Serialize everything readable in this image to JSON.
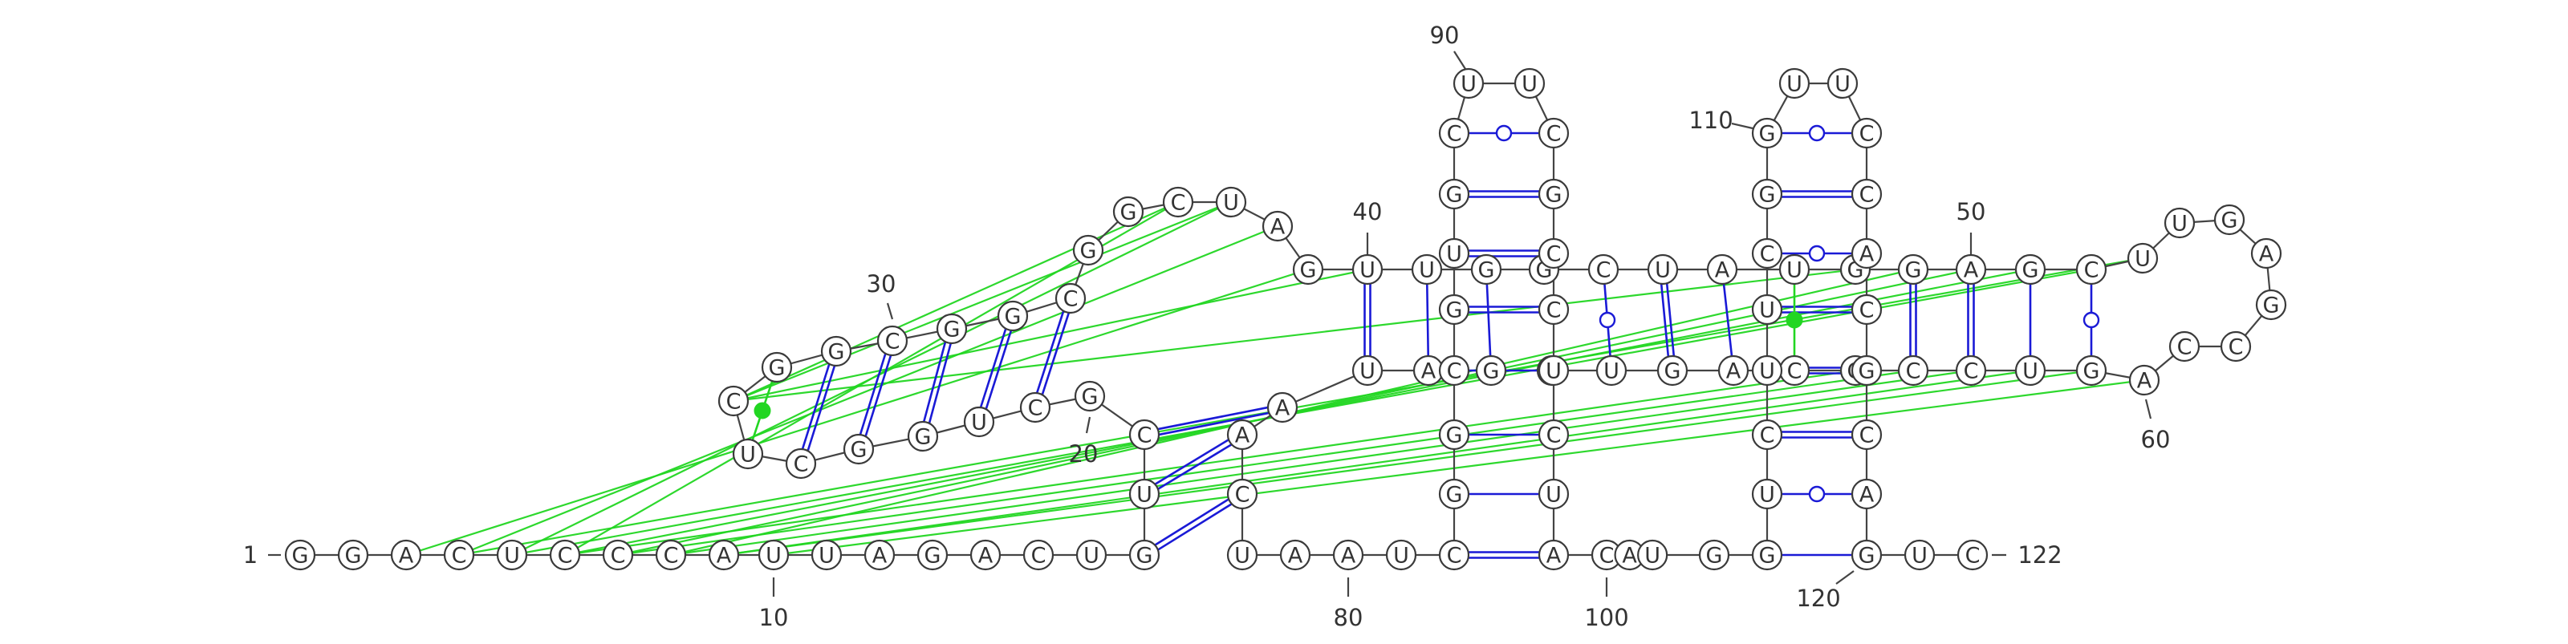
{
  "diagram": {
    "colors": {
      "canonical_pair": "#1a1ad6",
      "pseudoknot": "#22d622",
      "backbone": "#444444",
      "circle_stroke": "#3a3a3a"
    },
    "sequence": [
      "G",
      "G",
      "A",
      "C",
      "U",
      "C",
      "C",
      "C",
      "A",
      "U",
      "U",
      "A",
      "G",
      "A",
      "C",
      "U",
      "G",
      "U",
      "C",
      "G",
      "C",
      "U",
      "G",
      "G",
      "C",
      "U",
      "C",
      "G",
      "G",
      "C",
      "G",
      "G",
      "C",
      "G",
      "G",
      "C",
      "U",
      "A",
      "G",
      "U",
      "U",
      "G",
      "G",
      "C",
      "U",
      "A",
      "U",
      "G",
      "G",
      "A",
      "G",
      "C",
      "U",
      "U",
      "G",
      "A",
      "G",
      "C",
      "C",
      "A",
      "G",
      "U",
      "C",
      "C",
      "G",
      "C",
      "A",
      "G",
      "U",
      "C",
      "G",
      "A",
      "U",
      "A",
      "A",
      "C",
      "U",
      "A",
      "A",
      "U",
      "C",
      "G",
      "G",
      "C",
      "G",
      "U",
      "G",
      "C",
      "U",
      "U",
      "C",
      "G",
      "C",
      "C",
      "U",
      "C",
      "U",
      "A",
      "C",
      "A",
      "U",
      "G",
      "G",
      "U",
      "C",
      "U",
      "U",
      "C",
      "G",
      "G",
      "U",
      "U",
      "C",
      "C",
      "A",
      "C",
      "G",
      "C",
      "A",
      "G",
      "U",
      "C"
    ],
    "start_label": "1",
    "end_label": "122",
    "numbers": [
      "10",
      "20",
      "30",
      "40",
      "50",
      "60",
      "80",
      "90",
      "100",
      "110",
      "120"
    ],
    "pair_types": {
      "watson_crick": "double-line",
      "au_pair": "single-line",
      "gu_wobble": "circle",
      "noncanonical": "filled-dot"
    },
    "pseudoknot_count": 19
  }
}
